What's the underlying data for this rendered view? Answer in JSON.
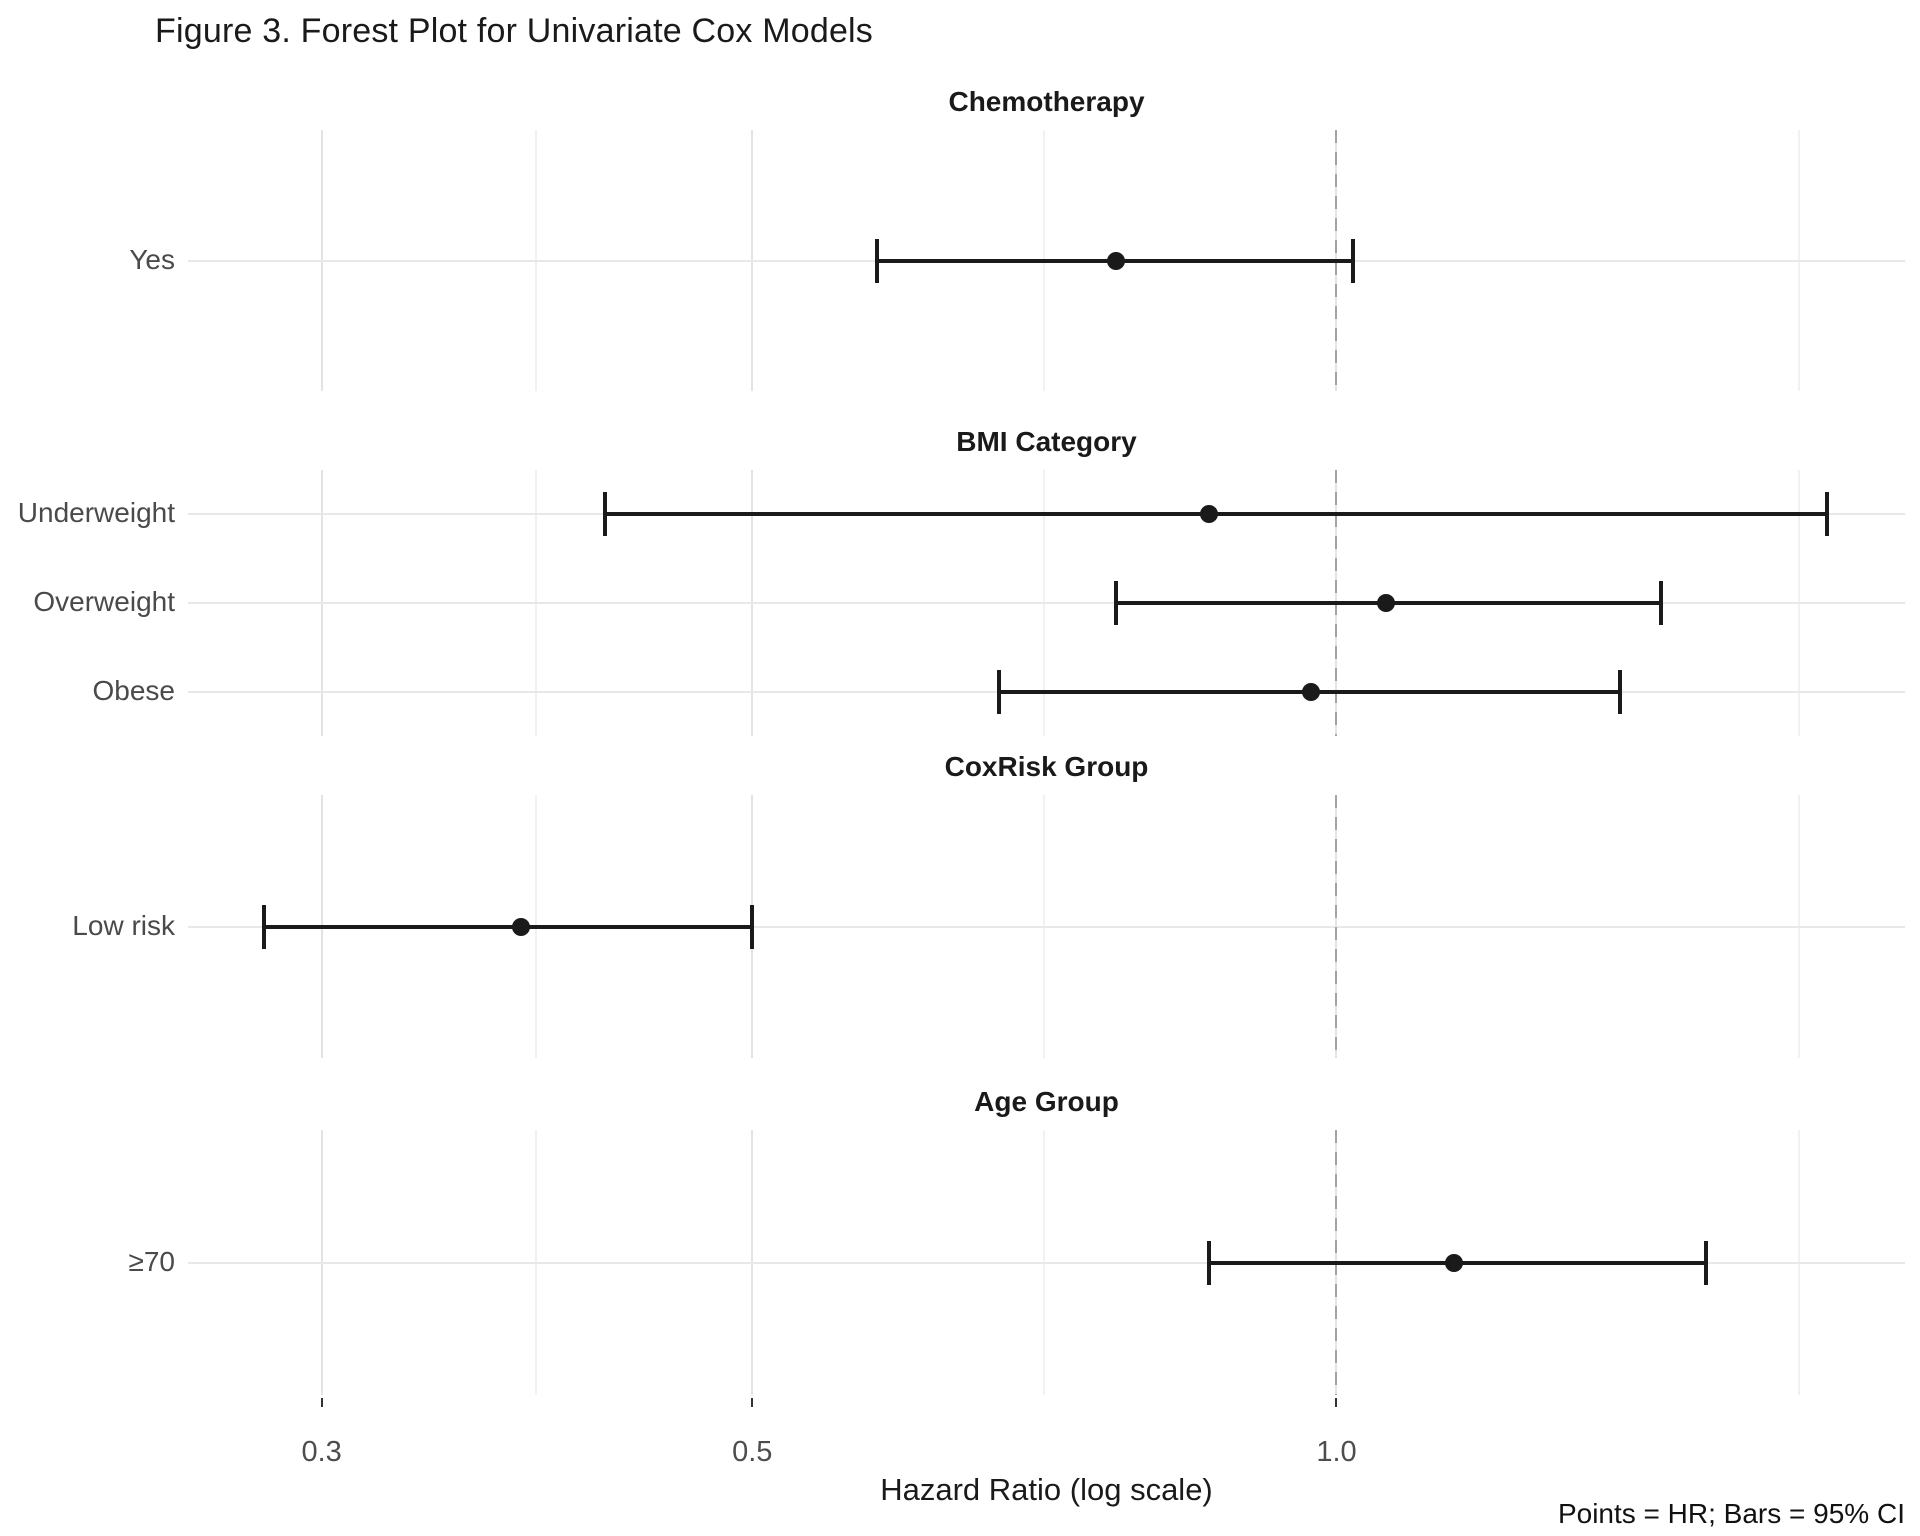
{
  "figure": {
    "title": "Figure 3. Forest Plot for Univariate Cox Models"
  },
  "chart_data": {
    "type": "forest_plot",
    "title": "Figure 3. Forest Plot for Univariate Cox Models",
    "x_axis": {
      "label": "Hazard Ratio (log scale)",
      "scale": "log10",
      "tick_values": [
        0.3,
        0.5,
        1.0
      ],
      "tick_labels": [
        "0.3",
        "0.5",
        "1.0"
      ],
      "minor_gridline_values": [
        0.387,
        0.707,
        1.732
      ],
      "range": [
        0.256,
        1.963
      ]
    },
    "reference_line": {
      "value": 1.0,
      "style": "dashed"
    },
    "panels": [
      {
        "title": "Chemotherapy",
        "rows": [
          {
            "label": "Yes",
            "hr": 0.77,
            "ci_low": 0.58,
            "ci_high": 1.02
          }
        ]
      },
      {
        "title": "BMI Category",
        "rows": [
          {
            "label": "Underweight",
            "hr": 0.86,
            "ci_low": 0.42,
            "ci_high": 1.79
          },
          {
            "label": "Overweight",
            "hr": 1.06,
            "ci_low": 0.77,
            "ci_high": 1.47
          },
          {
            "label": "Obese",
            "hr": 0.97,
            "ci_low": 0.67,
            "ci_high": 1.4
          }
        ]
      },
      {
        "title": "CoxRisk Group",
        "rows": [
          {
            "label": "Low risk",
            "hr": 0.38,
            "ci_low": 0.28,
            "ci_high": 0.5
          }
        ]
      },
      {
        "title": "Age Group",
        "rows": [
          {
            "label": "≥70",
            "hr": 1.15,
            "ci_low": 0.86,
            "ci_high": 1.55
          }
        ]
      }
    ],
    "footnote": "Points = HR; Bars = 95% CI",
    "legend_position": "none",
    "grid": true
  },
  "colors": {
    "background": "#ffffff",
    "title_text": "#1a1a1a",
    "axis_text": "#4d4d4d",
    "grid_major": "#e3e3e3",
    "grid_minor": "#f1f1f1",
    "row_gridline": "#e8e8e8",
    "reference_line": "#a3a3a3",
    "data": "#1a1a1a"
  }
}
